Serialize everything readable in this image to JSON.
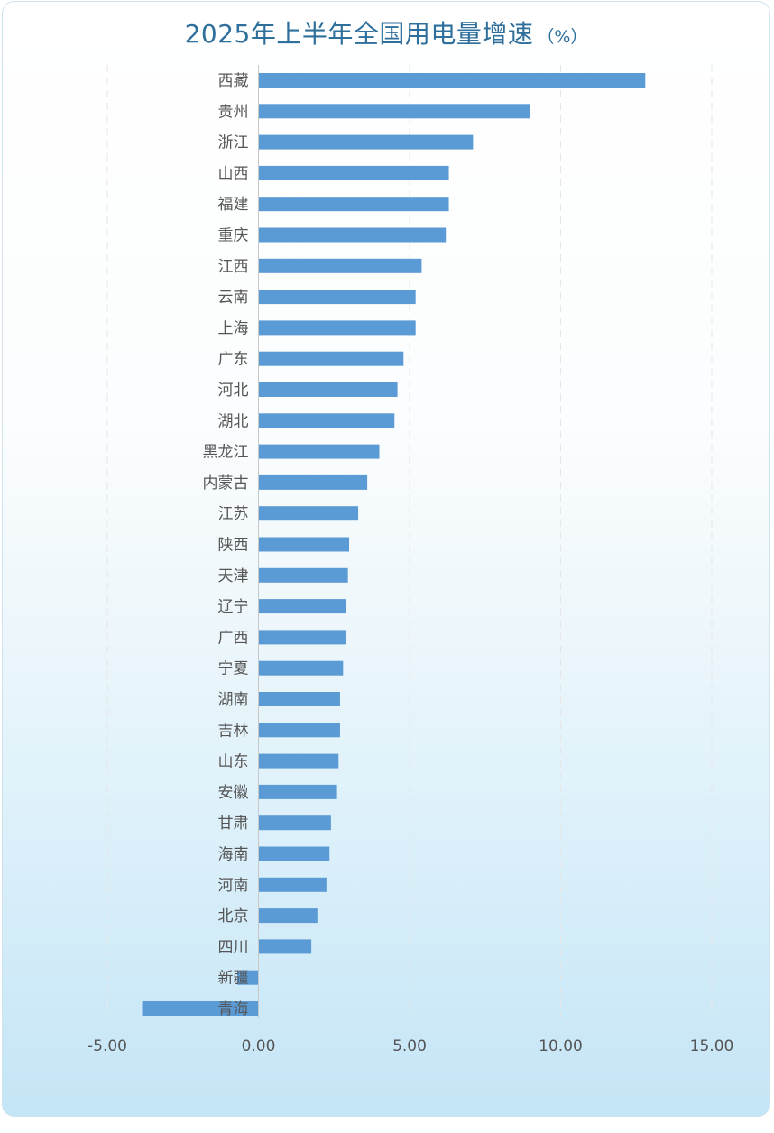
{
  "title": "2025年上半年全国用电量增速",
  "unit": "（%）",
  "chart_data": {
    "type": "bar",
    "orientation": "horizontal",
    "categories": [
      "西藏",
      "贵州",
      "浙江",
      "山西",
      "福建",
      "重庆",
      "江西",
      "云南",
      "上海",
      "广东",
      "河北",
      "湖北",
      "黑龙江",
      "内蒙古",
      "江苏",
      "陕西",
      "天津",
      "辽宁",
      "广西",
      "宁夏",
      "湖南",
      "吉林",
      "山东",
      "安徽",
      "甘肃",
      "海南",
      "河南",
      "北京",
      "四川",
      "新疆",
      "青海"
    ],
    "values": [
      12.8,
      9.0,
      7.1,
      6.3,
      6.3,
      6.2,
      5.4,
      5.2,
      5.2,
      4.8,
      4.6,
      4.5,
      4.0,
      3.6,
      3.3,
      3.0,
      2.96,
      2.9,
      2.88,
      2.8,
      2.7,
      2.7,
      2.65,
      2.6,
      2.4,
      2.35,
      2.25,
      1.95,
      1.75,
      -0.7,
      -3.85
    ],
    "xlim": [
      -5,
      15
    ],
    "xticks": [
      "-5.00",
      "0.00",
      "5.00",
      "10.00",
      "15.00"
    ],
    "xtick_values": [
      -5,
      0,
      5,
      10,
      15
    ],
    "grid": "vertical dashed",
    "bar_color": "#5b9bd5"
  }
}
